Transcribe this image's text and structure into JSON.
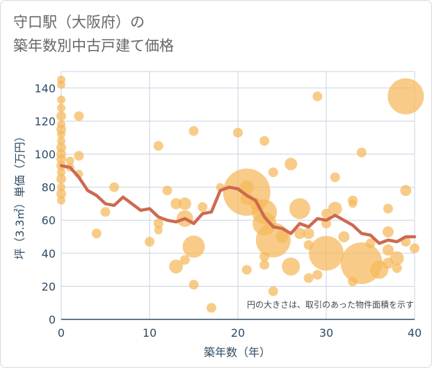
{
  "title_lines": [
    "守口駅（大阪府）の",
    "築年数別中古戸建て価格"
  ],
  "chart_data": {
    "type": "scatter",
    "xlabel": "築年数（年）",
    "ylabel": "坪（3.3㎡）単価（万円）",
    "xlim": [
      0,
      40
    ],
    "ylim": [
      0,
      150
    ],
    "x_ticks": [
      0,
      10,
      20,
      30,
      40
    ],
    "y_ticks": [
      0,
      20,
      40,
      60,
      80,
      100,
      120,
      140
    ],
    "grid": true,
    "annotation": "円の大きさは、取引のあった物件面積を示す",
    "colors": {
      "bubble": "#f5b95a",
      "line": "#cd6a50",
      "grid": "#c8d3df",
      "axis": "#2f4b63"
    },
    "bubbles": [
      {
        "x": 0,
        "y": 145,
        "r": 6
      },
      {
        "x": 0,
        "y": 142,
        "r": 6
      },
      {
        "x": 0,
        "y": 133,
        "r": 6
      },
      {
        "x": 0,
        "y": 128,
        "r": 6
      },
      {
        "x": 0,
        "y": 123,
        "r": 7
      },
      {
        "x": 0,
        "y": 118,
        "r": 6
      },
      {
        "x": 0,
        "y": 115,
        "r": 7
      },
      {
        "x": 0,
        "y": 112,
        "r": 6
      },
      {
        "x": 0,
        "y": 108,
        "r": 6
      },
      {
        "x": 0,
        "y": 104,
        "r": 7
      },
      {
        "x": 0,
        "y": 100,
        "r": 7
      },
      {
        "x": 0,
        "y": 97,
        "r": 7
      },
      {
        "x": 0,
        "y": 93,
        "r": 7
      },
      {
        "x": 0,
        "y": 89,
        "r": 6
      },
      {
        "x": 0,
        "y": 85,
        "r": 7
      },
      {
        "x": 0,
        "y": 80,
        "r": 6
      },
      {
        "x": 0,
        "y": 76,
        "r": 7
      },
      {
        "x": 0,
        "y": 72,
        "r": 6
      },
      {
        "x": 1,
        "y": 96,
        "r": 6
      },
      {
        "x": 1,
        "y": 92,
        "r": 6
      },
      {
        "x": 2,
        "y": 123,
        "r": 7
      },
      {
        "x": 2,
        "y": 99,
        "r": 7
      },
      {
        "x": 2,
        "y": 88,
        "r": 6
      },
      {
        "x": 4,
        "y": 52,
        "r": 7
      },
      {
        "x": 5,
        "y": 65,
        "r": 7
      },
      {
        "x": 6,
        "y": 80,
        "r": 7
      },
      {
        "x": 10,
        "y": 47,
        "r": 7
      },
      {
        "x": 11,
        "y": 105,
        "r": 7
      },
      {
        "x": 11,
        "y": 58,
        "r": 7
      },
      {
        "x": 11,
        "y": 54,
        "r": 6
      },
      {
        "x": 12,
        "y": 78,
        "r": 7
      },
      {
        "x": 13,
        "y": 70,
        "r": 8
      },
      {
        "x": 13,
        "y": 32,
        "r": 10
      },
      {
        "x": 14,
        "y": 70,
        "r": 9
      },
      {
        "x": 14,
        "y": 61,
        "r": 12
      },
      {
        "x": 14,
        "y": 36,
        "r": 7
      },
      {
        "x": 15,
        "y": 114,
        "r": 7
      },
      {
        "x": 15,
        "y": 44,
        "r": 16
      },
      {
        "x": 15,
        "y": 21,
        "r": 7
      },
      {
        "x": 16,
        "y": 68,
        "r": 7
      },
      {
        "x": 17,
        "y": 7,
        "r": 7
      },
      {
        "x": 18,
        "y": 80,
        "r": 6
      },
      {
        "x": 20,
        "y": 113,
        "r": 7
      },
      {
        "x": 21,
        "y": 80,
        "r": 10
      },
      {
        "x": 21,
        "y": 77,
        "r": 34
      },
      {
        "x": 21,
        "y": 73,
        "r": 9
      },
      {
        "x": 21,
        "y": 30,
        "r": 7
      },
      {
        "x": 22,
        "y": 70,
        "r": 9
      },
      {
        "x": 23,
        "y": 108,
        "r": 7
      },
      {
        "x": 23,
        "y": 65,
        "r": 18
      },
      {
        "x": 23,
        "y": 58,
        "r": 17
      },
      {
        "x": 23,
        "y": 38,
        "r": 7
      },
      {
        "x": 23,
        "y": 33,
        "r": 7
      },
      {
        "x": 24,
        "y": 89,
        "r": 7
      },
      {
        "x": 24,
        "y": 48,
        "r": 25
      },
      {
        "x": 24,
        "y": 17,
        "r": 7
      },
      {
        "x": 25,
        "y": 50,
        "r": 9
      },
      {
        "x": 26,
        "y": 94,
        "r": 9
      },
      {
        "x": 26,
        "y": 32,
        "r": 13
      },
      {
        "x": 27,
        "y": 67,
        "r": 15
      },
      {
        "x": 27,
        "y": 52,
        "r": 8
      },
      {
        "x": 28,
        "y": 52,
        "r": 8
      },
      {
        "x": 28,
        "y": 45,
        "r": 7
      },
      {
        "x": 28,
        "y": 25,
        "r": 7
      },
      {
        "x": 29,
        "y": 135,
        "r": 7
      },
      {
        "x": 29,
        "y": 27,
        "r": 7
      },
      {
        "x": 30,
        "y": 64,
        "r": 7
      },
      {
        "x": 30,
        "y": 58,
        "r": 7
      },
      {
        "x": 30,
        "y": 40,
        "r": 25
      },
      {
        "x": 31,
        "y": 86,
        "r": 7
      },
      {
        "x": 31,
        "y": 67,
        "r": 10
      },
      {
        "x": 32,
        "y": 50,
        "r": 8
      },
      {
        "x": 33,
        "y": 72,
        "r": 7
      },
      {
        "x": 33,
        "y": 70,
        "r": 6
      },
      {
        "x": 33,
        "y": 23,
        "r": 7
      },
      {
        "x": 34,
        "y": 101,
        "r": 7
      },
      {
        "x": 34,
        "y": 34,
        "r": 30
      },
      {
        "x": 35,
        "y": 46,
        "r": 7
      },
      {
        "x": 36,
        "y": 30,
        "r": 13
      },
      {
        "x": 37,
        "y": 67,
        "r": 7
      },
      {
        "x": 37,
        "y": 53,
        "r": 8
      },
      {
        "x": 37,
        "y": 42,
        "r": 8
      },
      {
        "x": 37,
        "y": 34,
        "r": 8
      },
      {
        "x": 38,
        "y": 37,
        "r": 10
      },
      {
        "x": 38,
        "y": 31,
        "r": 7
      },
      {
        "x": 39,
        "y": 135,
        "r": 26
      },
      {
        "x": 39,
        "y": 78,
        "r": 8
      },
      {
        "x": 39,
        "y": 47,
        "r": 7
      },
      {
        "x": 40,
        "y": 43,
        "r": 7
      }
    ],
    "series": [
      {
        "x": [
          0,
          1,
          2,
          3,
          4,
          5,
          6,
          7,
          8,
          9,
          10,
          11,
          12,
          13,
          14,
          15,
          16,
          17,
          18,
          19,
          20,
          21,
          22,
          23,
          24,
          25,
          26,
          27,
          28,
          29,
          30,
          31,
          32,
          33,
          34,
          35,
          36,
          37,
          38,
          39,
          40
        ],
        "values": [
          93,
          92,
          86,
          78,
          75,
          70,
          69,
          74,
          70,
          66,
          67,
          62,
          60,
          59,
          61,
          58,
          64,
          65,
          78,
          80,
          79,
          75,
          72,
          62,
          56,
          55,
          52,
          58,
          56,
          61,
          60,
          63,
          60,
          57,
          52,
          51,
          46,
          48,
          47,
          50,
          50
        ]
      }
    ]
  }
}
